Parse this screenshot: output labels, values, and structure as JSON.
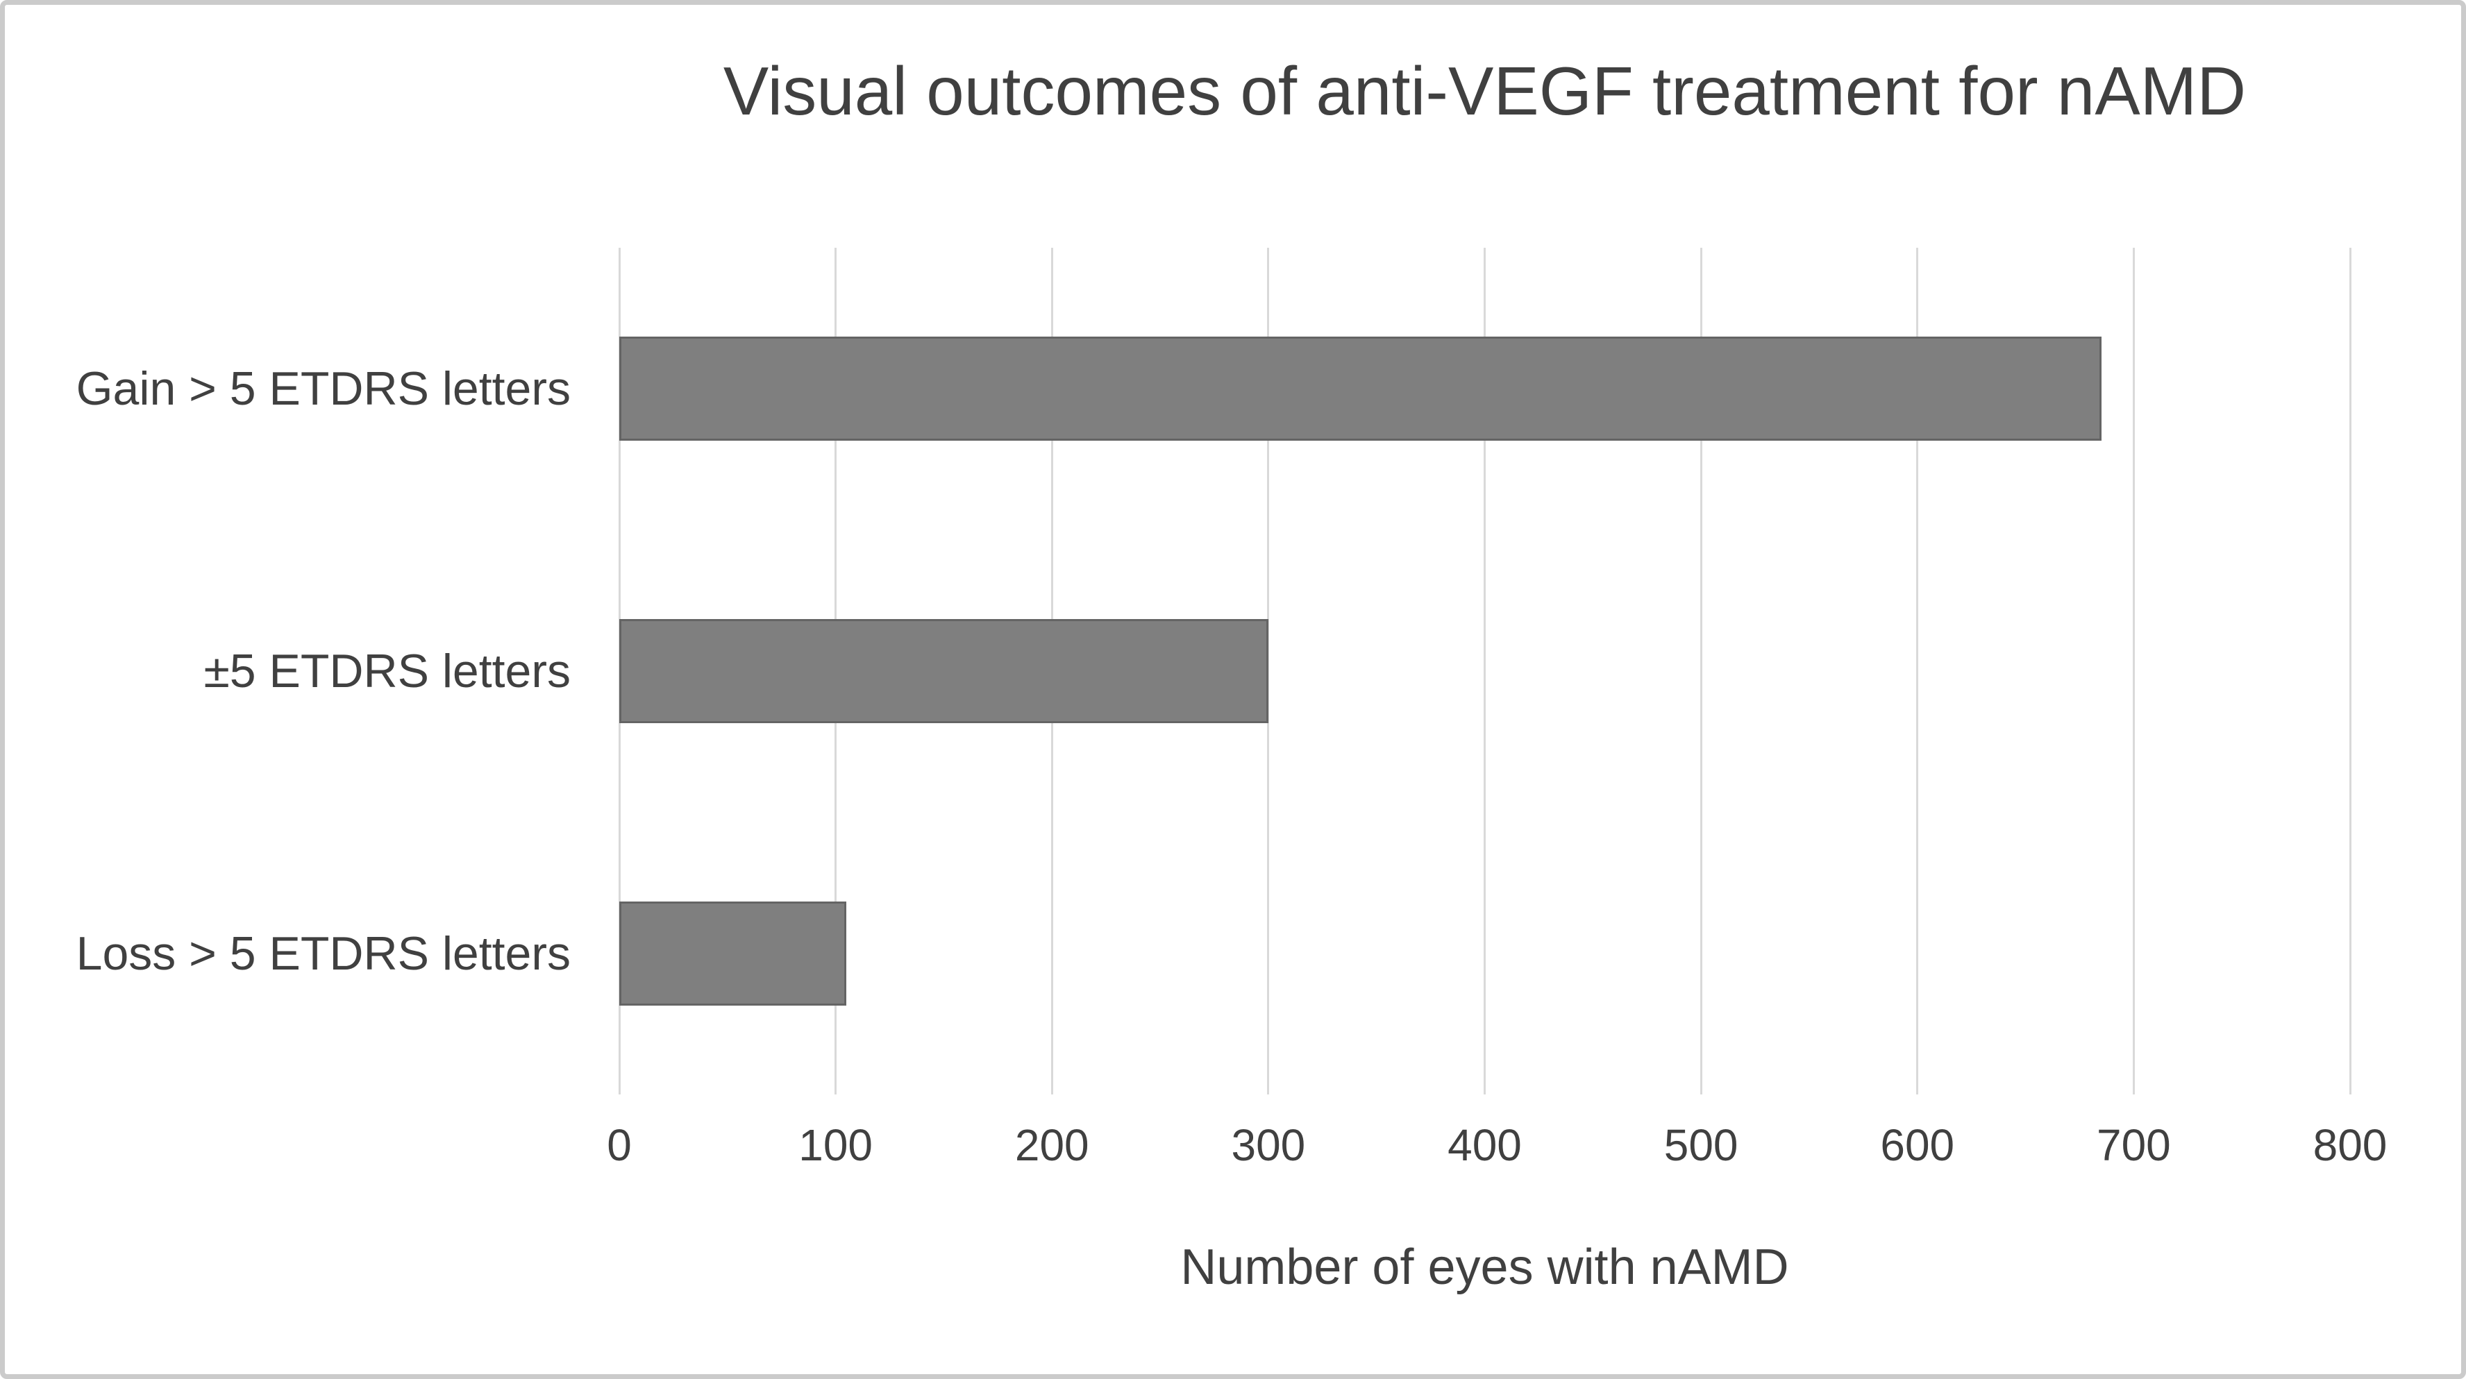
{
  "figure": {
    "background_color": "#ffffff",
    "frame_border_color": "#cbcbcb",
    "text_color": "#404040"
  },
  "chart_data": {
    "type": "bar",
    "orientation": "horizontal",
    "title": "Visual outcomes of anti-VEGF treatment for nAMD",
    "categories": [
      "Gain > 5 ETDRS letters",
      "±5 ETDRS letters",
      "Loss > 5 ETDRS letters"
    ],
    "values": [
      685,
      300,
      105
    ],
    "xlabel": "Number of eyes with nAMD",
    "ylabel": "",
    "xlim": [
      0,
      800
    ],
    "xticks": [
      0,
      100,
      200,
      300,
      400,
      500,
      600,
      700,
      800
    ],
    "grid": "vertical-only",
    "legend": "none",
    "bar_color": "#7f7f7f",
    "bar_border_color": "#646464",
    "gridline_color": "#d9d9d9"
  }
}
